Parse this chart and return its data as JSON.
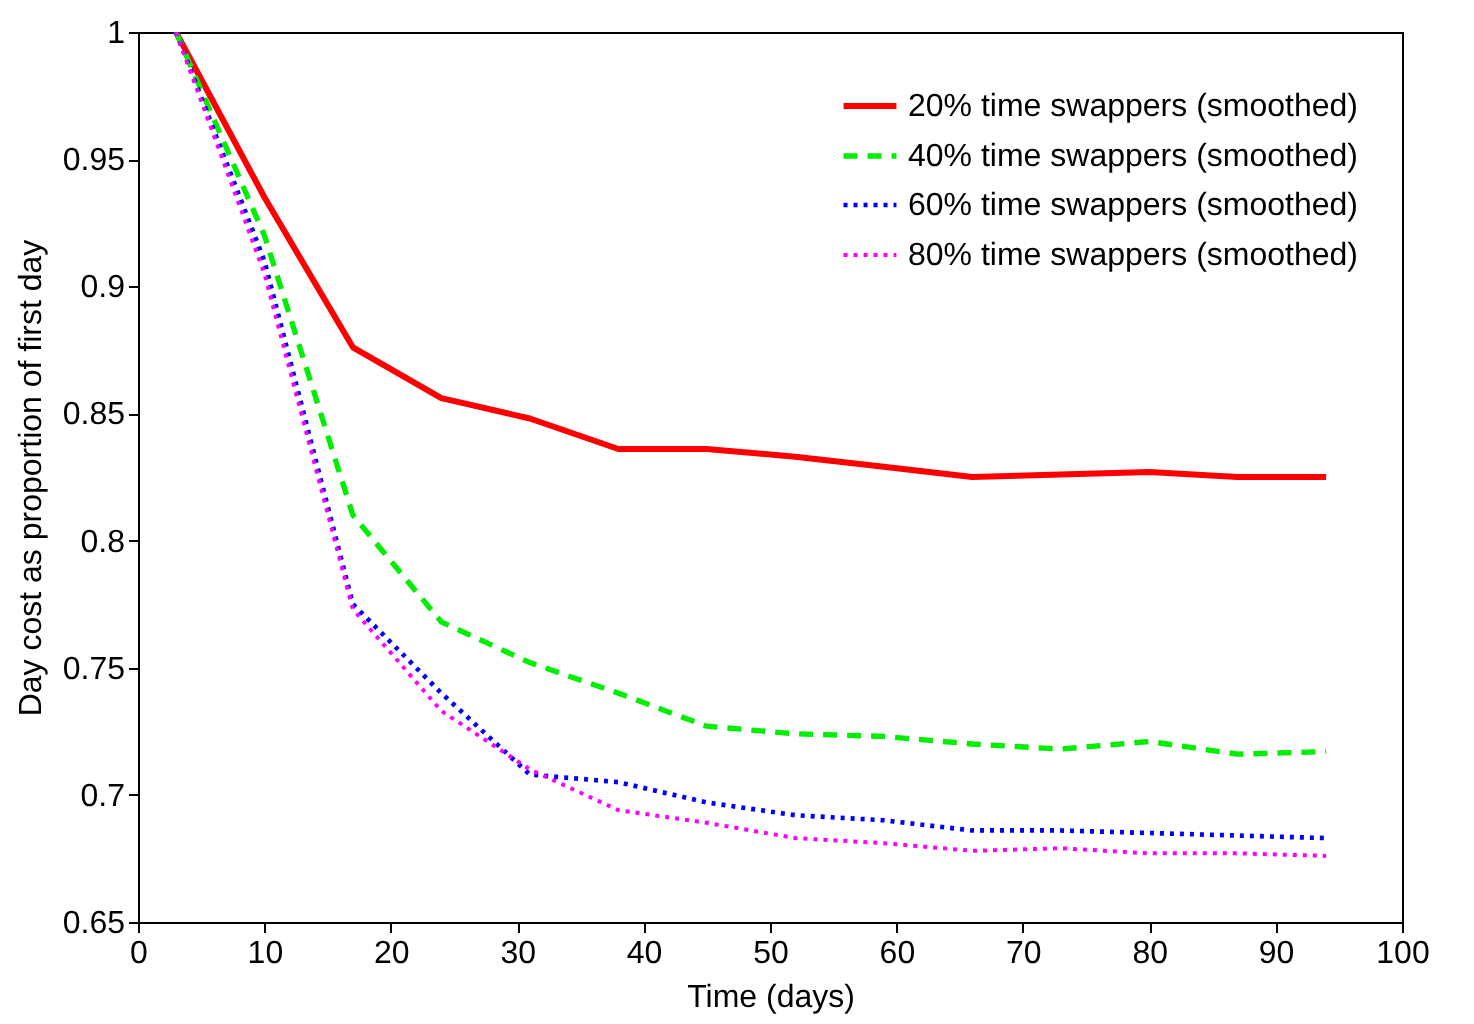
{
  "chart_data": {
    "type": "line",
    "xlabel": "Time (days)",
    "ylabel": "Day cost as proportion of first day",
    "x": [
      3,
      10,
      17,
      24,
      31,
      38,
      45,
      52,
      59,
      66,
      73,
      80,
      87,
      94
    ],
    "series": [
      {
        "name": "20% time swappers (smoothed)",
        "color": "#ff0000",
        "line_style": "solid",
        "values": [
          1,
          0.935,
          0.876,
          0.856,
          0.848,
          0.836,
          0.836,
          0.833,
          0.829,
          0.825,
          0.826,
          0.827,
          0.825,
          0.825
        ]
      },
      {
        "name": "40% time swappers (smoothed)",
        "color": "#00ee00",
        "line_style": "dashed",
        "values": [
          1,
          0.92,
          0.81,
          0.768,
          0.752,
          0.74,
          0.727,
          0.724,
          0.723,
          0.72,
          0.718,
          0.721,
          0.716,
          0.717
        ]
      },
      {
        "name": "60% time swappers (smoothed)",
        "color": "#0000ff",
        "line_style": "dotted",
        "values": [
          1,
          0.91,
          0.775,
          0.74,
          0.708,
          0.705,
          0.697,
          0.692,
          0.69,
          0.686,
          0.686,
          0.685,
          0.684,
          0.683
        ]
      },
      {
        "name": "80% time swappers (smoothed)",
        "color": "#ff00ff",
        "line_style": "dotted",
        "values": [
          1,
          0.905,
          0.773,
          0.733,
          0.71,
          0.694,
          0.689,
          0.683,
          0.681,
          0.678,
          0.679,
          0.677,
          0.677,
          0.676
        ]
      }
    ],
    "xlim": [
      0,
      100
    ],
    "xticks": [
      0,
      10,
      20,
      30,
      40,
      50,
      60,
      70,
      80,
      90,
      100
    ],
    "ylim": [
      0.65,
      1
    ],
    "yticks": [
      0.65,
      0.7,
      0.75,
      0.8,
      0.85,
      0.9,
      0.95,
      1
    ],
    "legend": "top right",
    "marker": "none"
  }
}
